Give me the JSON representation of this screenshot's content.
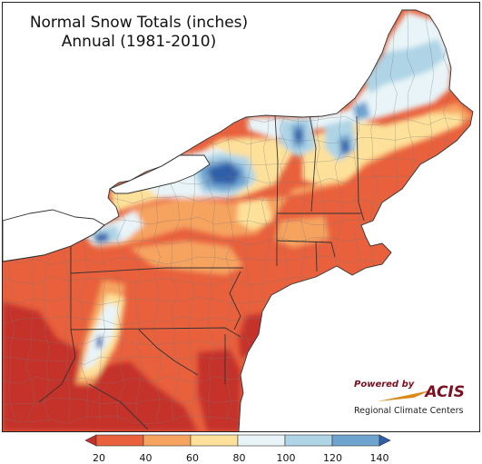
{
  "title": {
    "line1": "Normal Snow Totals (inches)",
    "line2": "Annual (1981-2010)"
  },
  "logo": {
    "powered_by": "Powered by",
    "name": "ACIS",
    "subtitle": "Regional Climate Centers"
  },
  "legend": {
    "min": 20,
    "max": 140,
    "ticks": [
      "20",
      "40",
      "60",
      "80",
      "100",
      "120",
      "140"
    ],
    "bins": [
      {
        "label": "<20",
        "color": "#c4302a"
      },
      {
        "label": "20-40",
        "color": "#e8603c"
      },
      {
        "label": "40-60",
        "color": "#f6a360"
      },
      {
        "label": "60-80",
        "color": "#fde19a"
      },
      {
        "label": "80-100",
        "color": "#e8f4f8"
      },
      {
        "label": "100-120",
        "color": "#aed4e6"
      },
      {
        "label": "120-140",
        "color": "#6ea2cf"
      },
      {
        "label": ">140",
        "color": "#2f5fa8"
      }
    ]
  },
  "colors": {
    "water": "#ffffff",
    "state_border": "#333333",
    "county_border": "#7a7a7a"
  }
}
